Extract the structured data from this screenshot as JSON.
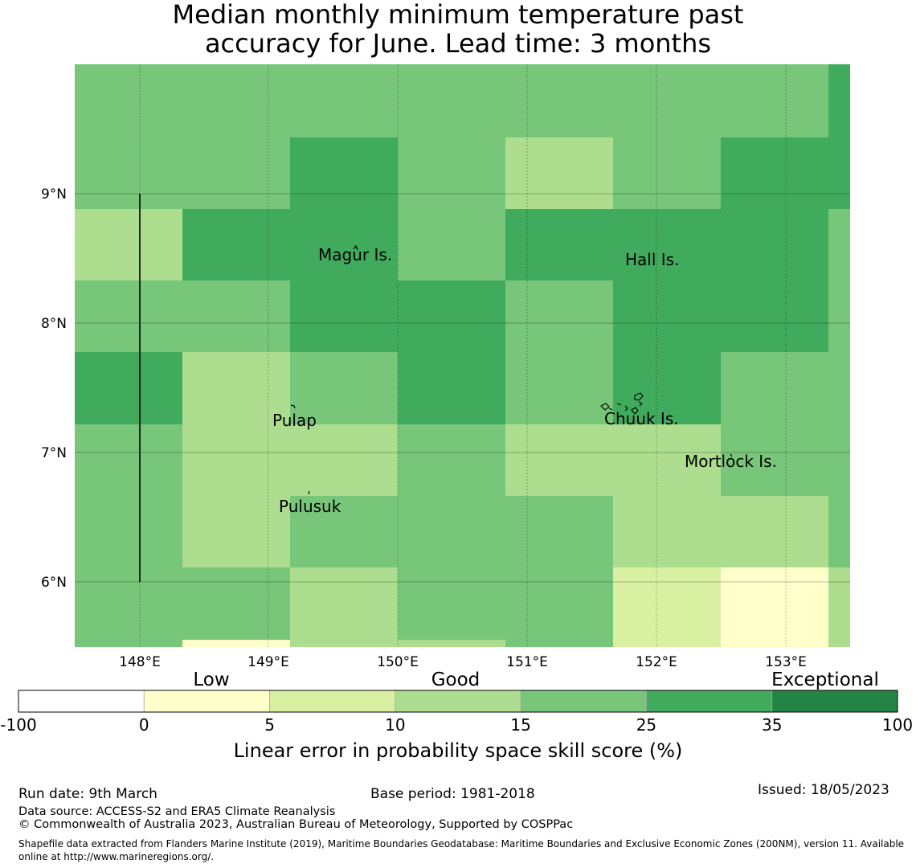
{
  "title_line1": "Median monthly minimum temperature past",
  "title_line2": "accuracy for June. Lead time: 3 months",
  "map": {
    "lon_labels": [
      "148°E",
      "149°E",
      "150°E",
      "151°E",
      "152°E",
      "153°E"
    ],
    "lat_labels": [
      "9°N",
      "8°N",
      "7°N",
      "6°N"
    ],
    "places": [
      {
        "name": "Magur Is."
      },
      {
        "name": "Hall Is."
      },
      {
        "name": "Pulap"
      },
      {
        "name": "Chuuk Is."
      },
      {
        "name": "Mortlock Is."
      },
      {
        "name": "Pulusuk"
      }
    ],
    "grid_rows": [
      [
        4,
        4,
        4,
        4,
        4,
        4,
        4,
        5
      ],
      [
        4,
        4,
        5,
        4,
        3,
        4,
        5,
        5
      ],
      [
        3,
        5,
        5,
        4,
        5,
        5,
        5,
        4
      ],
      [
        4,
        4,
        5,
        5,
        4,
        5,
        5,
        4
      ],
      [
        5,
        3,
        4,
        5,
        4,
        5,
        4,
        4
      ],
      [
        4,
        3,
        3,
        4,
        3,
        3,
        4,
        4
      ],
      [
        4,
        3,
        4,
        4,
        4,
        3,
        3,
        4
      ],
      [
        4,
        4,
        3,
        4,
        4,
        2,
        1,
        3
      ]
    ],
    "partial_bottom": [
      {
        "col": 1,
        "bin": 1
      },
      {
        "col": 3,
        "bin": 3
      }
    ]
  },
  "colorbar": {
    "categories": [
      "Low",
      "Good",
      "Exceptional"
    ],
    "ticks": [
      "-100",
      "0",
      "5",
      "10",
      "15",
      "25",
      "35",
      "100"
    ],
    "colors": [
      "#ffffff",
      "#ffffcc",
      "#d9f0a3",
      "#addd8e",
      "#78c679",
      "#41ab5d",
      "#238443"
    ],
    "label": "Linear error in probability space skill score (%)"
  },
  "footer": {
    "run_date": "Run date: 9th March",
    "base_period": "Base period: 1981-2018",
    "issued": "Issued: 18/05/2023",
    "data_source": "Data source: ACCESS-S2 and ERA5 Climate Reanalysis",
    "copyright": "© Commonwealth of Australia 2023, Australian Bureau of Meteorology, Supported by COSPPac",
    "shapefile_line1": "Shapefile data extracted from Flanders Marine Institute (2019), Maritime Boundaries Geodatabase: Maritime Boundaries and Exclusive Economic Zones (200NM), version 11. Available",
    "shapefile_line2": "online at http://www.marineregions.org/."
  }
}
